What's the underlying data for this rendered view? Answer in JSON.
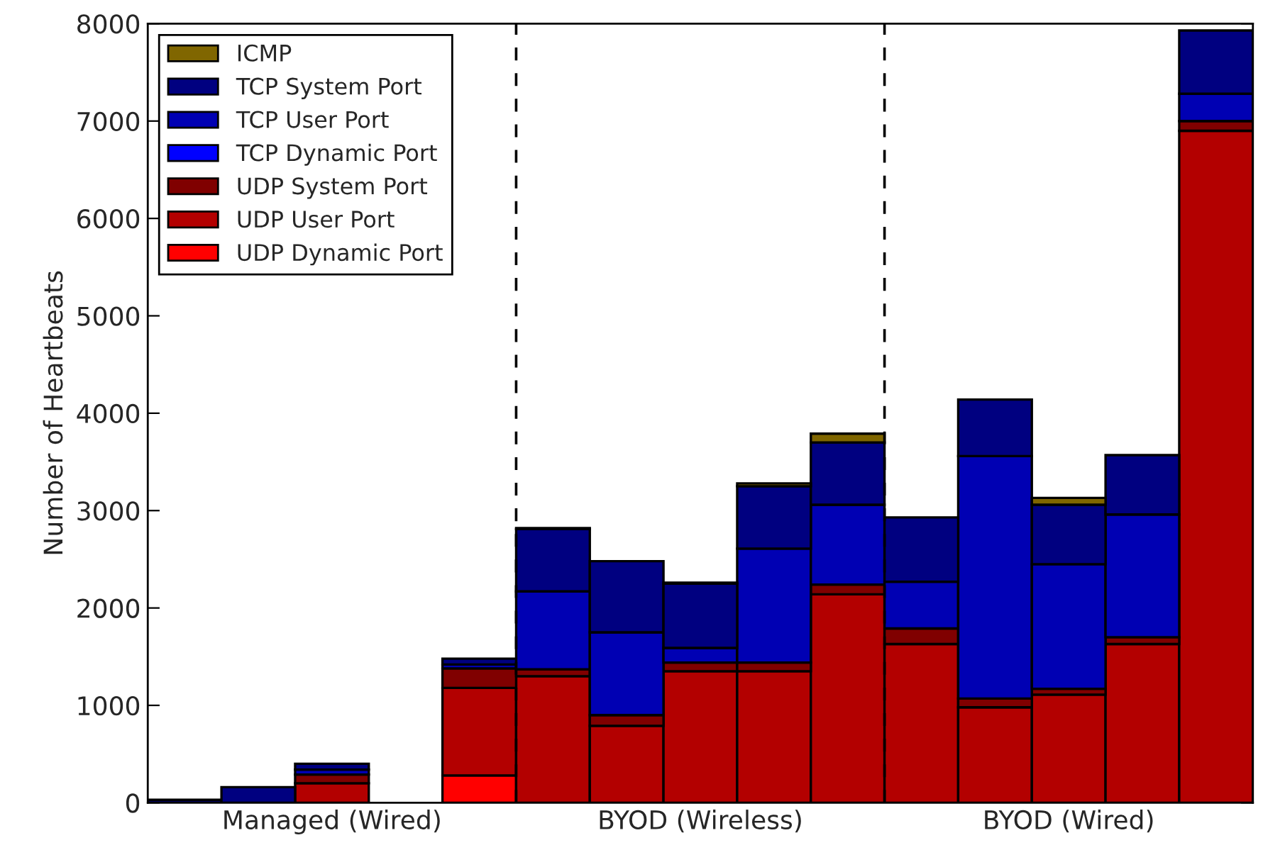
{
  "chart_data": {
    "type": "bar",
    "stacked": true,
    "ylabel": "Number of Heartbeats",
    "categories": [
      null,
      null,
      "Managed (Wired)",
      null,
      null,
      null,
      null,
      "BYOD (Wireless)",
      null,
      null,
      null,
      null,
      "BYOD (Wired)",
      null,
      null
    ],
    "ylim": [
      0,
      8000
    ],
    "yticks": [
      0,
      1000,
      2000,
      3000,
      4000,
      5000,
      6000,
      7000,
      8000
    ],
    "series": [
      {
        "name": "UDP Dynamic Port",
        "color": "#ff0000",
        "values": [
          0,
          0,
          0,
          0,
          280,
          0,
          0,
          0,
          0,
          0,
          0,
          0,
          0,
          0,
          0
        ]
      },
      {
        "name": "UDP User Port",
        "color": "#b30000",
        "values": [
          0,
          0,
          200,
          0,
          900,
          1300,
          790,
          1350,
          1350,
          2140,
          1630,
          980,
          1110,
          1630,
          6900
        ]
      },
      {
        "name": "UDP System Port",
        "color": "#800000",
        "values": [
          0,
          0,
          90,
          0,
          200,
          70,
          110,
          90,
          90,
          100,
          160,
          90,
          60,
          70,
          100
        ]
      },
      {
        "name": "TCP Dynamic Port",
        "color": "#0000ff",
        "values": [
          0,
          0,
          0,
          0,
          0,
          0,
          0,
          0,
          0,
          0,
          0,
          0,
          0,
          0,
          0
        ]
      },
      {
        "name": "TCP User Port",
        "color": "#0000b3",
        "values": [
          0,
          0,
          50,
          0,
          40,
          800,
          850,
          150,
          1170,
          820,
          480,
          2490,
          1280,
          1260,
          280
        ]
      },
      {
        "name": "TCP System Port",
        "color": "#000080",
        "values": [
          30,
          160,
          60,
          0,
          60,
          640,
          730,
          660,
          640,
          640,
          660,
          580,
          610,
          610,
          650
        ]
      },
      {
        "name": "ICMP",
        "color": "#806600",
        "values": [
          0,
          0,
          0,
          0,
          0,
          10,
          0,
          10,
          30,
          90,
          0,
          0,
          70,
          0,
          0
        ]
      }
    ],
    "legend": "top left",
    "grid": false
  }
}
